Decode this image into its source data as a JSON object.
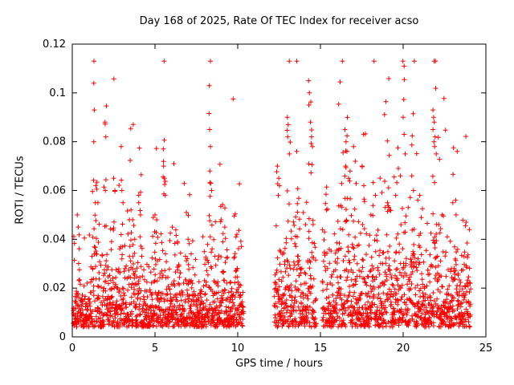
{
  "chart_data": {
    "type": "scatter",
    "title": "Day 168 of 2025, Rate Of TEC Index for receiver acso",
    "xlabel": "GPS time / hours",
    "ylabel": "ROTI / TECUs",
    "xlim": [
      0,
      25
    ],
    "ylim": [
      0,
      0.12
    ],
    "xtick_values": [
      0,
      5,
      10,
      15,
      20,
      25
    ],
    "xtick_labels": [
      "0",
      "5",
      "10",
      "15",
      "20",
      "25"
    ],
    "ytick_values": [
      0,
      0.02,
      0.04,
      0.06,
      0.08,
      0.1,
      0.12
    ],
    "ytick_labels": [
      "0",
      "0.02",
      "0.04",
      "0.06",
      "0.08",
      "0.1",
      "0.12"
    ],
    "grid": false,
    "legend": "none",
    "background_color": "#ffffff",
    "axis_color": "#000000",
    "series": [
      {
        "name": "ROTI",
        "marker": "plus",
        "color": "#ff0000",
        "x_start": 0.05,
        "x_end": 24.08,
        "sampling_interval_hours": 0.0083333,
        "data_gaps": [
          [
            10.35,
            12.2
          ],
          [
            14.75,
            15.1
          ]
        ],
        "baseline": {
          "y_offset": 0.004,
          "noise_mean": 0.0065,
          "y_cap": 0.113
        },
        "activity_clusters": [
          {
            "c": 0.35,
            "w": 0.08,
            "p": 0.05
          },
          {
            "c": 1.35,
            "w": 0.1,
            "p": 0.104
          },
          {
            "c": 2.0,
            "w": 0.08,
            "p": 0.088
          },
          {
            "c": 2.55,
            "w": 0.1,
            "p": 0.065
          },
          {
            "c": 3.0,
            "w": 0.12,
            "p": 0.06
          },
          {
            "c": 3.6,
            "w": 0.15,
            "p": 0.052
          },
          {
            "c": 4.05,
            "w": 0.1,
            "p": 0.055
          },
          {
            "c": 5.05,
            "w": 0.1,
            "p": 0.05
          },
          {
            "c": 5.55,
            "w": 0.12,
            "p": 0.077
          },
          {
            "c": 6.3,
            "w": 0.15,
            "p": 0.04
          },
          {
            "c": 7.0,
            "w": 0.2,
            "p": 0.035
          },
          {
            "c": 8.3,
            "w": 0.12,
            "p": 0.103
          },
          {
            "c": 9.1,
            "w": 0.2,
            "p": 0.048
          },
          {
            "c": 9.9,
            "w": 0.15,
            "p": 0.042
          },
          {
            "c": 12.45,
            "w": 0.1,
            "p": 0.07
          },
          {
            "c": 13.05,
            "w": 0.12,
            "p": 0.09
          },
          {
            "c": 13.6,
            "w": 0.15,
            "p": 0.06
          },
          {
            "c": 14.4,
            "w": 0.15,
            "p": 0.105
          },
          {
            "c": 15.4,
            "w": 0.15,
            "p": 0.045
          },
          {
            "c": 16.2,
            "w": 0.2,
            "p": 0.06
          },
          {
            "c": 16.6,
            "w": 0.12,
            "p": 0.085
          },
          {
            "c": 17.1,
            "w": 0.12,
            "p": 0.078
          },
          {
            "c": 17.6,
            "w": 0.12,
            "p": 0.07
          },
          {
            "c": 18.2,
            "w": 0.2,
            "p": 0.05
          },
          {
            "c": 19.1,
            "w": 0.2,
            "p": 0.055
          },
          {
            "c": 19.6,
            "w": 0.15,
            "p": 0.058
          },
          {
            "c": 20.05,
            "w": 0.1,
            "p": 0.09
          },
          {
            "c": 20.55,
            "w": 0.12,
            "p": 0.066
          },
          {
            "c": 21.0,
            "w": 0.15,
            "p": 0.058
          },
          {
            "c": 21.9,
            "w": 0.12,
            "p": 0.093
          },
          {
            "c": 22.4,
            "w": 0.2,
            "p": 0.055
          },
          {
            "c": 23.1,
            "w": 0.2,
            "p": 0.055
          },
          {
            "c": 23.9,
            "w": 0.15,
            "p": 0.047
          }
        ],
        "peak_points": [
          [
            0.3,
            0.05
          ],
          [
            0.36,
            0.045
          ],
          [
            1.3,
            0.104
          ],
          [
            1.33,
            0.093
          ],
          [
            1.3,
            0.08
          ],
          [
            1.42,
            0.062
          ],
          [
            1.55,
            0.055
          ],
          [
            1.98,
            0.088
          ],
          [
            2.03,
            0.082
          ],
          [
            2.0,
            0.06
          ],
          [
            2.5,
            0.065
          ],
          [
            2.58,
            0.06
          ],
          [
            3.0,
            0.06
          ],
          [
            3.07,
            0.055
          ],
          [
            3.55,
            0.052
          ],
          [
            3.65,
            0.048
          ],
          [
            4.02,
            0.055
          ],
          [
            4.12,
            0.05
          ],
          [
            5.0,
            0.05
          ],
          [
            5.1,
            0.048
          ],
          [
            5.5,
            0.077
          ],
          [
            5.52,
            0.07
          ],
          [
            5.57,
            0.065
          ],
          [
            5.62,
            0.058
          ],
          [
            6.05,
            0.045
          ],
          [
            7.0,
            0.04
          ],
          [
            8.28,
            0.103
          ],
          [
            8.3,
            0.085
          ],
          [
            8.35,
            0.078
          ],
          [
            8.32,
            0.068
          ],
          [
            8.42,
            0.06
          ],
          [
            9.0,
            0.048
          ],
          [
            9.22,
            0.045
          ],
          [
            9.95,
            0.042
          ],
          [
            12.4,
            0.07
          ],
          [
            12.48,
            0.065
          ],
          [
            12.45,
            0.058
          ],
          [
            13.0,
            0.09
          ],
          [
            13.05,
            0.087
          ],
          [
            13.02,
            0.082
          ],
          [
            13.12,
            0.075
          ],
          [
            14.28,
            0.105
          ],
          [
            14.33,
            0.1
          ],
          [
            14.3,
            0.095
          ],
          [
            14.4,
            0.088
          ],
          [
            14.46,
            0.082
          ],
          [
            14.52,
            0.078
          ],
          [
            15.25,
            0.043
          ],
          [
            16.48,
            0.085
          ],
          [
            16.55,
            0.08
          ],
          [
            16.6,
            0.076
          ],
          [
            16.52,
            0.07
          ],
          [
            16.7,
            0.065
          ],
          [
            17.0,
            0.078
          ],
          [
            17.1,
            0.072
          ],
          [
            17.52,
            0.07
          ],
          [
            17.62,
            0.062
          ],
          [
            18.05,
            0.05
          ],
          [
            19.05,
            0.055
          ],
          [
            19.55,
            0.058
          ],
          [
            20.0,
            0.09
          ],
          [
            20.06,
            0.083
          ],
          [
            20.12,
            0.075
          ],
          [
            20.52,
            0.066
          ],
          [
            20.62,
            0.06
          ],
          [
            21.0,
            0.058
          ],
          [
            21.8,
            0.093
          ],
          [
            21.84,
            0.09
          ],
          [
            21.88,
            0.088
          ],
          [
            21.8,
            0.085
          ],
          [
            21.86,
            0.08
          ],
          [
            21.93,
            0.082
          ],
          [
            21.9,
            0.078
          ],
          [
            22.0,
            0.075
          ],
          [
            23.0,
            0.055
          ],
          [
            23.2,
            0.05
          ],
          [
            23.8,
            0.047
          ],
          [
            24.0,
            0.044
          ]
        ]
      }
    ]
  }
}
